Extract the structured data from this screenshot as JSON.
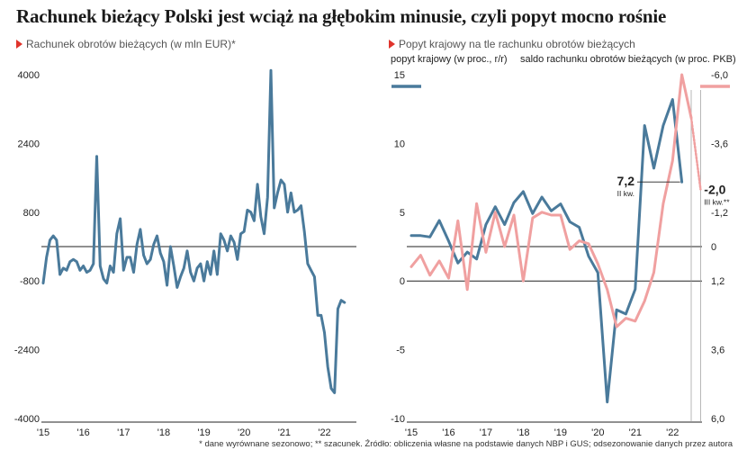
{
  "title": "Rachunek bieżący Polski jest wciąż na głębokim minusie, czyli popyt mocno rośnie",
  "footnote": "* dane wyrównane sezonowo; ** szacunek. Źródło: obliczenia własne na podstawie danych NBP i GUS; odsezonowanie danych przez autora",
  "colors": {
    "blue": "#4a7a9b",
    "pink": "#f0a0a0",
    "accent": "#e0342c"
  },
  "chart_data": [
    {
      "type": "line",
      "subtitle": "Rachunek obrotów bieżących (w mln EUR)*",
      "x_ticks": [
        "'15",
        "'16",
        "'17",
        "'18",
        "'19",
        "'20",
        "'21",
        "'22"
      ],
      "y_ticks": [
        "4000",
        "2400",
        "800",
        "-800",
        "-2400",
        "-4000"
      ],
      "ylim": [
        -4000,
        4000
      ],
      "x_range": [
        2015.0,
        2022.75
      ],
      "reference_line": 0,
      "series": [
        {
          "color": "#4a7a9b",
          "points": [
            [
              2015.0,
              -850
            ],
            [
              2015.083,
              -250
            ],
            [
              2015.167,
              150
            ],
            [
              2015.25,
              250
            ],
            [
              2015.333,
              150
            ],
            [
              2015.417,
              -650
            ],
            [
              2015.5,
              -500
            ],
            [
              2015.583,
              -550
            ],
            [
              2015.667,
              -350
            ],
            [
              2015.75,
              -300
            ],
            [
              2015.833,
              -350
            ],
            [
              2015.917,
              -550
            ],
            [
              2016.0,
              -450
            ],
            [
              2016.083,
              -600
            ],
            [
              2016.167,
              -550
            ],
            [
              2016.25,
              -400
            ],
            [
              2016.333,
              2100
            ],
            [
              2016.417,
              -450
            ],
            [
              2016.5,
              -750
            ],
            [
              2016.583,
              -850
            ],
            [
              2016.667,
              -450
            ],
            [
              2016.75,
              -600
            ],
            [
              2016.833,
              300
            ],
            [
              2016.917,
              650
            ],
            [
              2017.0,
              -550
            ],
            [
              2017.083,
              -250
            ],
            [
              2017.167,
              -250
            ],
            [
              2017.25,
              -600
            ],
            [
              2017.333,
              50
            ],
            [
              2017.417,
              400
            ],
            [
              2017.5,
              -200
            ],
            [
              2017.583,
              -400
            ],
            [
              2017.667,
              -300
            ],
            [
              2017.75,
              50
            ],
            [
              2017.833,
              250
            ],
            [
              2017.917,
              -150
            ],
            [
              2018.0,
              -350
            ],
            [
              2018.083,
              -900
            ],
            [
              2018.167,
              0
            ],
            [
              2018.25,
              -450
            ],
            [
              2018.333,
              -950
            ],
            [
              2018.417,
              -700
            ],
            [
              2018.5,
              -500
            ],
            [
              2018.583,
              -100
            ],
            [
              2018.667,
              -600
            ],
            [
              2018.75,
              -800
            ],
            [
              2018.833,
              -500
            ],
            [
              2018.917,
              -400
            ],
            [
              2019.0,
              -800
            ],
            [
              2019.083,
              -350
            ],
            [
              2019.167,
              -650
            ],
            [
              2019.25,
              -100
            ],
            [
              2019.333,
              -650
            ],
            [
              2019.417,
              300
            ],
            [
              2019.5,
              150
            ],
            [
              2019.583,
              -100
            ],
            [
              2019.667,
              250
            ],
            [
              2019.75,
              100
            ],
            [
              2019.833,
              -300
            ],
            [
              2019.917,
              300
            ],
            [
              2020.0,
              350
            ],
            [
              2020.083,
              850
            ],
            [
              2020.167,
              800
            ],
            [
              2020.25,
              600
            ],
            [
              2020.333,
              1450
            ],
            [
              2020.417,
              700
            ],
            [
              2020.5,
              300
            ],
            [
              2020.583,
              1150
            ],
            [
              2020.667,
              4100
            ],
            [
              2020.75,
              900
            ],
            [
              2020.833,
              1250
            ],
            [
              2020.917,
              1550
            ],
            [
              2021.0,
              1450
            ],
            [
              2021.083,
              800
            ],
            [
              2021.167,
              1250
            ],
            [
              2021.25,
              800
            ],
            [
              2021.333,
              850
            ],
            [
              2021.417,
              950
            ],
            [
              2021.5,
              350
            ],
            [
              2021.583,
              -400
            ],
            [
              2021.667,
              -550
            ],
            [
              2021.75,
              -700
            ],
            [
              2021.833,
              -1600
            ],
            [
              2021.917,
              -1600
            ],
            [
              2022.0,
              -2000
            ],
            [
              2022.083,
              -2800
            ],
            [
              2022.167,
              -3300
            ],
            [
              2022.25,
              -3400
            ],
            [
              2022.333,
              -1450
            ],
            [
              2022.417,
              -1250
            ],
            [
              2022.5,
              -1300
            ]
          ]
        }
      ]
    },
    {
      "type": "line",
      "subtitle": "Popyt krajowy na tle rachunku obrotów bieżących",
      "x_ticks": [
        "'15",
        "'16",
        "'17",
        "'18",
        "'19",
        "'20",
        "'21",
        "'22"
      ],
      "left_axis_label": "popyt krajowy (w proc., r/r)",
      "right_axis_label": "saldo rachunku obrotów bieżących (w proc. PKB)",
      "left_ticks": [
        "15",
        "10",
        "5",
        "0",
        "-5",
        "-10"
      ],
      "left_ylim": [
        -10,
        15
      ],
      "right_ticks": [
        "-6,0",
        "-3,6",
        "-1,2",
        "0",
        "1,2",
        "3,6",
        "6,0"
      ],
      "right_ylim": [
        6.0,
        -6.0
      ],
      "x_range": [
        2015.0,
        2022.5
      ],
      "reference_lines": [
        {
          "axis": "right",
          "value": 0
        },
        {
          "axis": "left",
          "value": 0
        }
      ],
      "series": [
        {
          "axis": "left",
          "color": "#4a7a9b",
          "points": [
            [
              2015.0,
              3.3
            ],
            [
              2015.25,
              3.3
            ],
            [
              2015.5,
              3.2
            ],
            [
              2015.75,
              4.4
            ],
            [
              2016.0,
              2.9
            ],
            [
              2016.25,
              1.3
            ],
            [
              2016.5,
              2.1
            ],
            [
              2016.75,
              1.6
            ],
            [
              2017.0,
              4.1
            ],
            [
              2017.25,
              5.4
            ],
            [
              2017.5,
              4.1
            ],
            [
              2017.75,
              5.7
            ],
            [
              2018.0,
              6.5
            ],
            [
              2018.25,
              4.9
            ],
            [
              2018.5,
              6.1
            ],
            [
              2018.75,
              5.1
            ],
            [
              2019.0,
              5.6
            ],
            [
              2019.25,
              4.3
            ],
            [
              2019.5,
              3.9
            ],
            [
              2019.75,
              1.8
            ],
            [
              2020.0,
              0.6
            ],
            [
              2020.25,
              -8.8
            ],
            [
              2020.5,
              -2.1
            ],
            [
              2020.75,
              -2.4
            ],
            [
              2021.0,
              -0.6
            ],
            [
              2021.25,
              11.3
            ],
            [
              2021.5,
              8.2
            ],
            [
              2021.75,
              11.3
            ],
            [
              2022.0,
              13.2
            ],
            [
              2022.25,
              7.2
            ]
          ]
        },
        {
          "axis": "right",
          "color": "#f0a0a0",
          "points": [
            [
              2015.0,
              0.7
            ],
            [
              2015.25,
              0.3
            ],
            [
              2015.5,
              1.0
            ],
            [
              2015.75,
              0.5
            ],
            [
              2016.0,
              1.1
            ],
            [
              2016.25,
              -0.9
            ],
            [
              2016.5,
              1.5
            ],
            [
              2016.75,
              -1.5
            ],
            [
              2017.0,
              0.2
            ],
            [
              2017.25,
              -1.2
            ],
            [
              2017.5,
              0.0
            ],
            [
              2017.75,
              -1.1
            ],
            [
              2018.0,
              1.2
            ],
            [
              2018.25,
              -1.0
            ],
            [
              2018.5,
              -1.2
            ],
            [
              2018.75,
              -1.1
            ],
            [
              2019.0,
              -1.1
            ],
            [
              2019.25,
              0.1
            ],
            [
              2019.5,
              -0.2
            ],
            [
              2019.75,
              -0.1
            ],
            [
              2020.0,
              0.6
            ],
            [
              2020.25,
              1.5
            ],
            [
              2020.5,
              2.8
            ],
            [
              2020.75,
              2.5
            ],
            [
              2021.0,
              2.6
            ],
            [
              2021.25,
              1.9
            ],
            [
              2021.5,
              0.9
            ],
            [
              2021.75,
              -1.5
            ],
            [
              2022.0,
              -3.0
            ],
            [
              2022.25,
              -6.0
            ],
            [
              2022.5,
              -4.5
            ]
          ]
        },
        {
          "axis": "right",
          "color": "#f0a0a0",
          "dashed": true,
          "points": [
            [
              2022.5,
              -4.5
            ],
            [
              2022.75,
              -2.0
            ]
          ]
        }
      ],
      "annotations": [
        {
          "value": "7,2",
          "note": "II kw."
        },
        {
          "value": "-2,0",
          "note": "III kw.**"
        }
      ]
    }
  ]
}
